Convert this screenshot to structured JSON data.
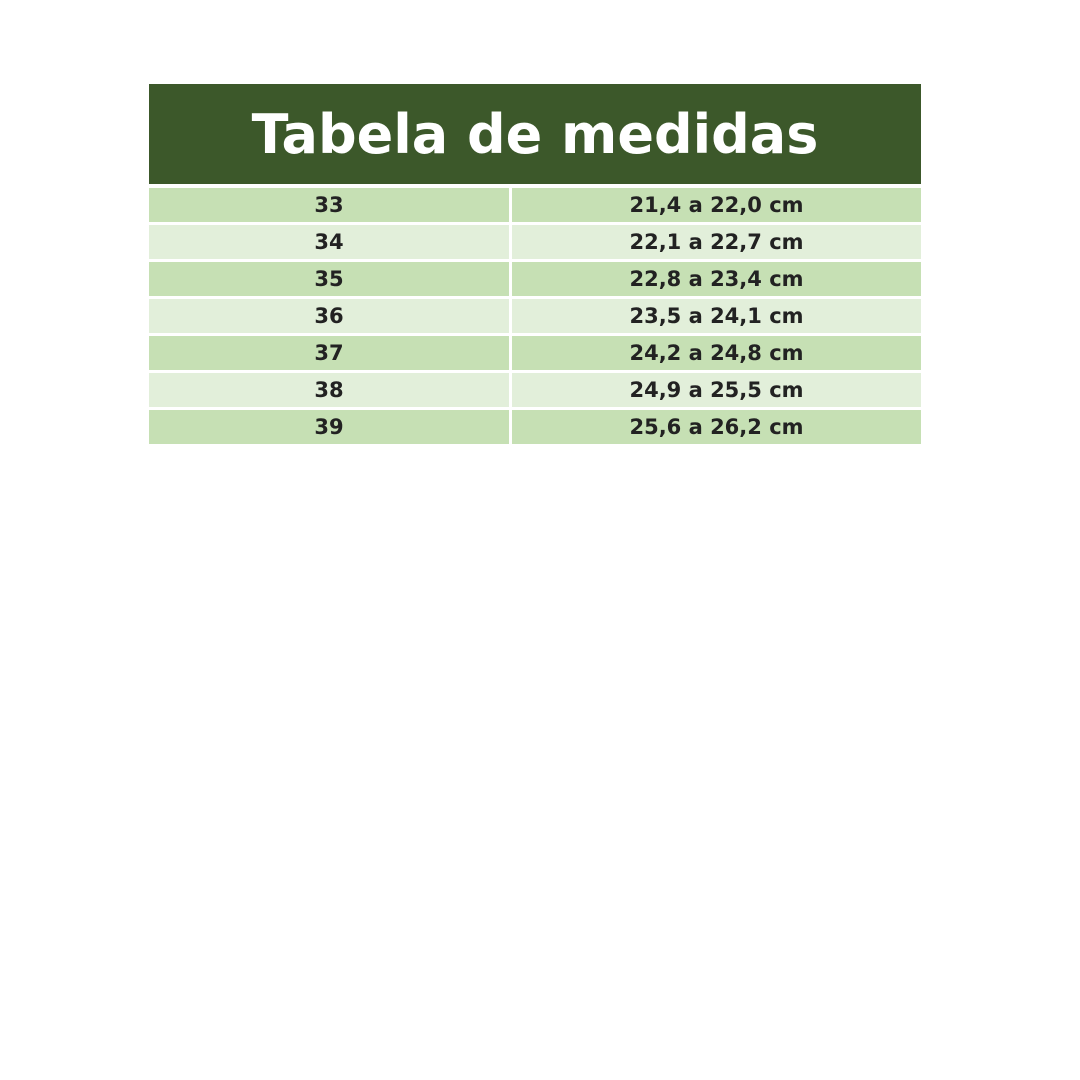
{
  "table": {
    "title": "Tabela de medidas",
    "rows": [
      [
        "33",
        "21,4 a 22,0 cm"
      ],
      [
        "34",
        "22,1 a 22,7 cm"
      ],
      [
        "35",
        "22,8 a 23,4 cm"
      ],
      [
        "36",
        "23,5 a 24,1 cm"
      ],
      [
        "37",
        "24,2 a 24,8 cm"
      ],
      [
        "38",
        "24,9 a 25,5 cm"
      ],
      [
        "39",
        "25,6 a 26,2 cm"
      ]
    ]
  }
}
